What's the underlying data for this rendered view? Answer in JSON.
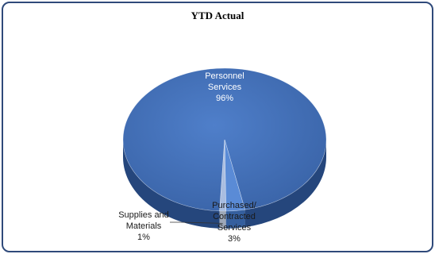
{
  "chart_data": {
    "type": "pie",
    "title": "YTD Actual",
    "three_d": true,
    "slices": [
      {
        "label_lines": [
          "Personnel",
          "Services",
          "96%"
        ],
        "value": 96,
        "color": "#4472c4",
        "shade": "#2e5595",
        "side": "#25467c"
      },
      {
        "label_lines": [
          "Purchased/",
          "Contracted",
          "Services",
          "3%"
        ],
        "value": 3,
        "color": "#5a8bd6",
        "shade": "#3f6fb8",
        "side": "#355f9e"
      },
      {
        "label_lines": [
          "Supplies and",
          "Materials",
          "1%"
        ],
        "value": 1,
        "color": "#a9bde0",
        "shade": "#8fa6d0",
        "side": "#9ea8b8"
      }
    ],
    "legend": "none"
  }
}
